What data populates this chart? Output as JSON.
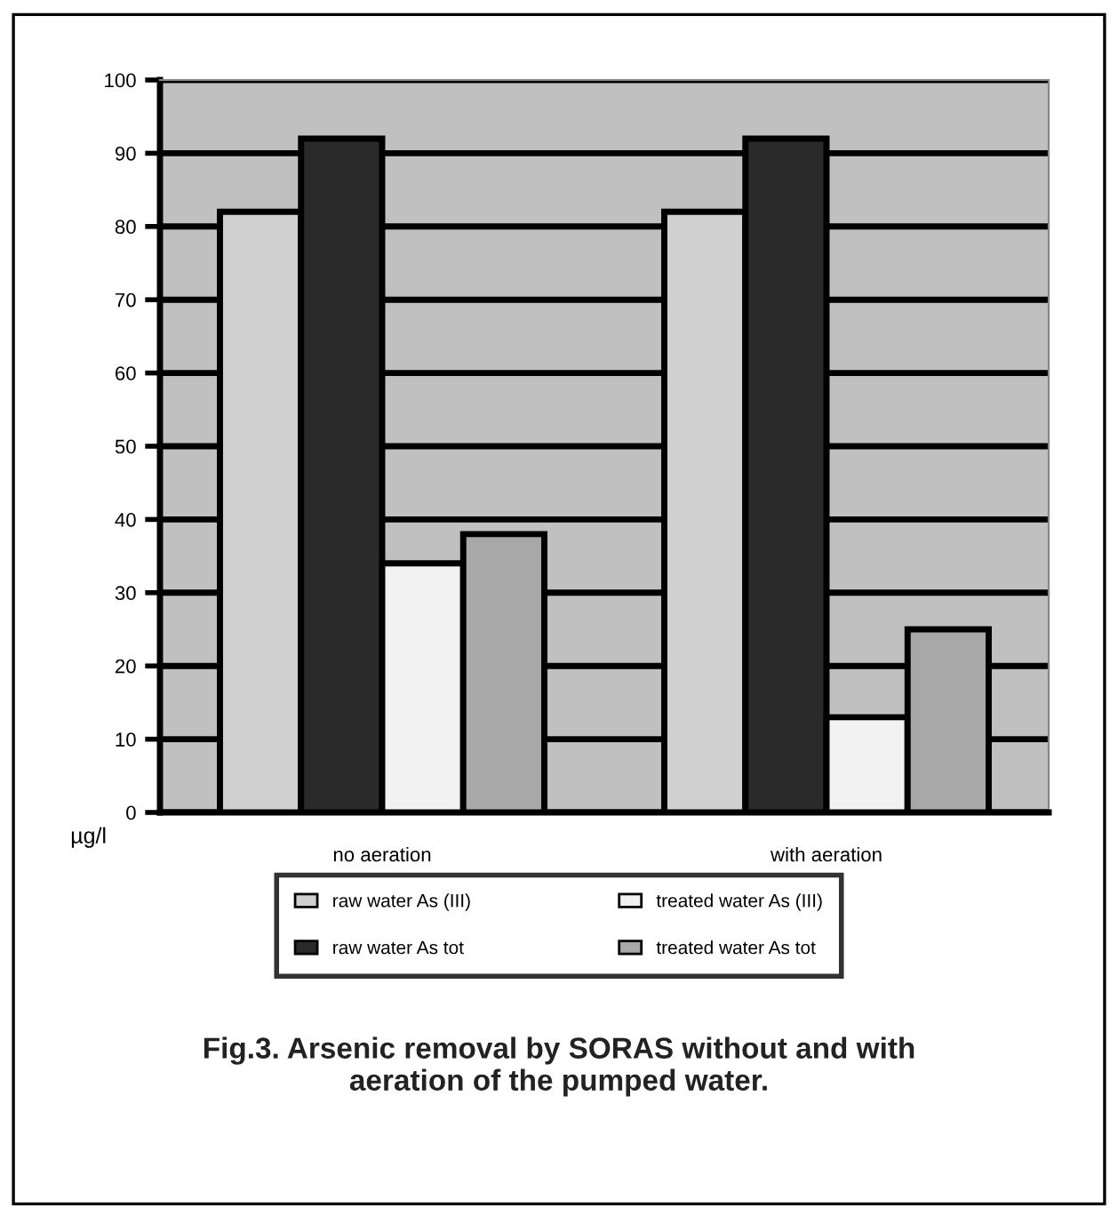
{
  "chart_data": {
    "type": "bar",
    "title": "Fig.3. Arsenic removal by SORAS without and with\naeration of the pumped water.",
    "ylabel": "µg/l",
    "categories": [
      "no aeration",
      "with aeration"
    ],
    "series": [
      {
        "name": "raw water As (III)",
        "color": "#d0d0d0",
        "values": [
          82,
          82
        ]
      },
      {
        "name": "raw water As tot",
        "color": "#2a2a2a",
        "values": [
          92,
          92
        ]
      },
      {
        "name": "treated water As (III)",
        "color": "#f2f2f2",
        "values": [
          34,
          13
        ]
      },
      {
        "name": "treated water As tot",
        "color": "#a8a8a8",
        "values": [
          38,
          25
        ]
      }
    ],
    "ylim": [
      0,
      100
    ],
    "yticks": [
      0,
      10,
      20,
      30,
      40,
      50,
      60,
      70,
      80,
      90,
      100
    ],
    "grid": "y",
    "legend": "bottom"
  }
}
